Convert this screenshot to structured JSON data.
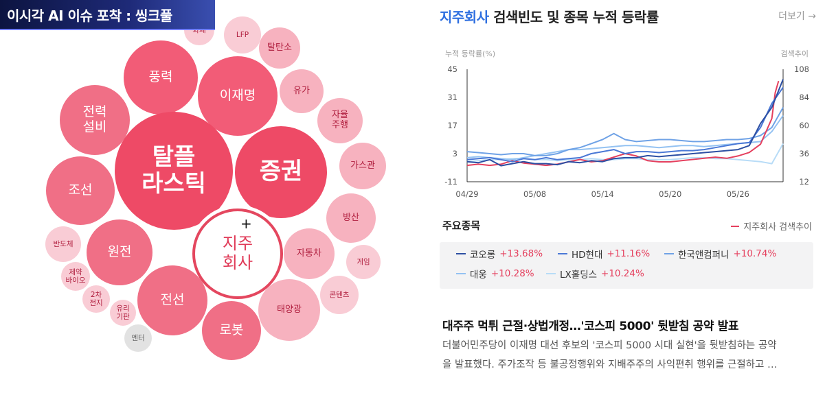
{
  "banner": {
    "title": "이시각 AI 이슈 포착 : 씽크풀"
  },
  "bubbles": [
    {
      "label": "화폐",
      "size": "xs"
    },
    {
      "label": "LFP",
      "size": "xs"
    },
    {
      "label": "탈탄소",
      "size": "sm"
    },
    {
      "label": "풍력",
      "size": "md"
    },
    {
      "label": "이재명",
      "size": "md"
    },
    {
      "label": "유가",
      "size": "sm"
    },
    {
      "label": "전력\n설비",
      "size": "md"
    },
    {
      "label": "자율\n주행",
      "size": "sm"
    },
    {
      "label": "탈플\n라스틱",
      "size": "lg"
    },
    {
      "label": "증권",
      "size": "lg"
    },
    {
      "label": "가스관",
      "size": "sm"
    },
    {
      "label": "조선",
      "size": "md"
    },
    {
      "label": "방산",
      "size": "sm"
    },
    {
      "label": "지주\n회사",
      "size": "selected"
    },
    {
      "label": "반도체",
      "size": "xs"
    },
    {
      "label": "원전",
      "size": "md"
    },
    {
      "label": "자동차",
      "size": "sm"
    },
    {
      "label": "게임",
      "size": "xs"
    },
    {
      "label": "제약\n바이오",
      "size": "xs"
    },
    {
      "label": "2차\n전지",
      "size": "xs"
    },
    {
      "label": "전선",
      "size": "md"
    },
    {
      "label": "태양광",
      "size": "sm"
    },
    {
      "label": "콘텐츠",
      "size": "xs"
    },
    {
      "label": "유리\n기판",
      "size": "xs"
    },
    {
      "label": "로봇",
      "size": "md"
    },
    {
      "label": "엔터",
      "size": "xs"
    }
  ],
  "panel": {
    "keyword": "지주회사",
    "title_rest": " 검색빈도 및 종목 누적 등락률",
    "more": "더보기 →",
    "section_title": "주요종목",
    "legend_label": "지주회사 검색추이",
    "stocks": [
      {
        "name": "코오롱",
        "change": "+13.68%",
        "color": "#2c4fa3"
      },
      {
        "name": "HD현대",
        "change": "+11.16%",
        "color": "#4a78d6"
      },
      {
        "name": "한국앤컴퍼니",
        "change": "+10.74%",
        "color": "#6fa2e6"
      },
      {
        "name": "대웅",
        "change": "+10.28%",
        "color": "#94c2f2"
      },
      {
        "name": "LX홀딩스",
        "change": "+10.24%",
        "color": "#b8dcf7"
      }
    ],
    "news": {
      "headline": "대주주 먹튀 근절·상법개정…'코스피 5000' 뒷받침 공약 발표",
      "lines": [
        "더불어민주당이 이재명 대선 후보의 '코스피 5000 시대 실현'을 뒷받침하는 공약",
        "을 발표했다. 주가조작 등 불공정행위와 지배주주의 사익편취 행위를 근절하고 …"
      ]
    }
  },
  "chart_data": {
    "type": "line",
    "ylabel": "누적 등락률(%)",
    "y2label": "검색추이",
    "ylim": [
      -11,
      45
    ],
    "y2lim": [
      12,
      108
    ],
    "yticks": [
      45,
      31,
      17,
      3,
      -11
    ],
    "y2ticks": [
      108,
      84,
      60,
      36,
      12
    ],
    "xticks": [
      "04/29",
      "05/08",
      "05/14",
      "05/20",
      "05/26"
    ],
    "x_range": [
      0,
      28
    ],
    "xtick_positions": [
      0,
      6,
      12,
      18,
      24
    ],
    "series": [
      {
        "name": "코오롱",
        "color": "#2c4fa3",
        "axis": "left",
        "x": [
          0,
          1,
          2,
          3,
          4,
          5,
          6,
          7,
          8,
          9,
          10,
          11,
          12,
          13,
          14,
          15,
          16,
          17,
          18,
          19,
          20,
          21,
          22,
          23,
          24,
          25,
          26,
          27,
          27.5,
          28
        ],
        "y": [
          -1,
          -1.5,
          0,
          -3,
          -2,
          -1,
          -2,
          -2,
          -2.5,
          -1,
          -1.5,
          -0.5,
          -1,
          0.5,
          1,
          1,
          2,
          1.5,
          2,
          2.5,
          3,
          3.5,
          4,
          4.5,
          5,
          7,
          18,
          26,
          33,
          40
        ]
      },
      {
        "name": "HD현대",
        "color": "#4a78d6",
        "axis": "left",
        "x": [
          0,
          1,
          2,
          3,
          4,
          5,
          6,
          7,
          8,
          9,
          10,
          11,
          12,
          13,
          14,
          15,
          16,
          17,
          18,
          19,
          20,
          21,
          22,
          23,
          24,
          25,
          26,
          27,
          28
        ],
        "y": [
          0,
          0.5,
          1,
          0,
          -1,
          0.5,
          0,
          1,
          0,
          0.5,
          1,
          3,
          4,
          5,
          3,
          4,
          4,
          3.5,
          4,
          4.5,
          4.5,
          5,
          6,
          7,
          8,
          8.5,
          16,
          28,
          36
        ]
      },
      {
        "name": "한국앤컴퍼니",
        "color": "#6fa2e6",
        "axis": "left",
        "x": [
          0,
          1,
          2,
          3,
          4,
          5,
          6,
          7,
          8,
          9,
          10,
          11,
          12,
          13,
          14,
          15,
          16,
          17,
          18,
          19,
          20,
          21,
          22,
          23,
          24,
          25,
          26,
          27,
          28
        ],
        "y": [
          4,
          3.5,
          3,
          2.5,
          3,
          3,
          2,
          2,
          3,
          5,
          6,
          8,
          10,
          13,
          10,
          9,
          9.5,
          10,
          10,
          9.5,
          9,
          9,
          9.5,
          10,
          10,
          10.5,
          12,
          16,
          26
        ]
      },
      {
        "name": "대웅",
        "color": "#94c2f2",
        "axis": "left",
        "x": [
          0,
          1,
          2,
          3,
          4,
          5,
          6,
          7,
          8,
          9,
          10,
          11,
          12,
          13,
          14,
          15,
          16,
          17,
          18,
          19,
          20,
          21,
          22,
          23,
          24,
          25,
          26,
          27,
          28
        ],
        "y": [
          1,
          1.5,
          1,
          0.5,
          0,
          1,
          2,
          3,
          4,
          5,
          5,
          5.5,
          6,
          6.5,
          7,
          7,
          6.5,
          6,
          6.5,
          7,
          7,
          6.5,
          7,
          7.5,
          8,
          8.5,
          9,
          14,
          22
        ]
      },
      {
        "name": "LX홀딩스",
        "color": "#b8dcf7",
        "axis": "left",
        "x": [
          0,
          1,
          2,
          3,
          4,
          5,
          6,
          7,
          8,
          9,
          10,
          11,
          12,
          13,
          14,
          15,
          16,
          17,
          18,
          19,
          20,
          21,
          22,
          23,
          24,
          25,
          26,
          27,
          28
        ],
        "y": [
          -1,
          -0.5,
          0,
          0,
          0.5,
          0.5,
          0,
          0,
          -0.5,
          0,
          0,
          0.5,
          0,
          0,
          0.5,
          0.5,
          0,
          0,
          0,
          0.5,
          1,
          1,
          0.5,
          0.5,
          0,
          -0.5,
          -1,
          -2,
          8
        ]
      },
      {
        "name": "지주회사 검색추이",
        "color": "#e5405e",
        "axis": "right",
        "x": [
          0,
          1,
          2,
          3,
          4,
          5,
          6,
          7,
          8,
          9,
          10,
          11,
          12,
          13,
          14,
          15,
          16,
          17,
          18,
          19,
          20,
          21,
          22,
          23,
          24,
          25,
          26,
          27,
          27.3,
          27.6
        ],
        "y": [
          26,
          27,
          26,
          27,
          30,
          28,
          27,
          26,
          27,
          29,
          31,
          29,
          30,
          33,
          36,
          34,
          30,
          29,
          29,
          30,
          31,
          32,
          33,
          32,
          34,
          37,
          44,
          66,
          88,
          98
        ]
      }
    ]
  }
}
